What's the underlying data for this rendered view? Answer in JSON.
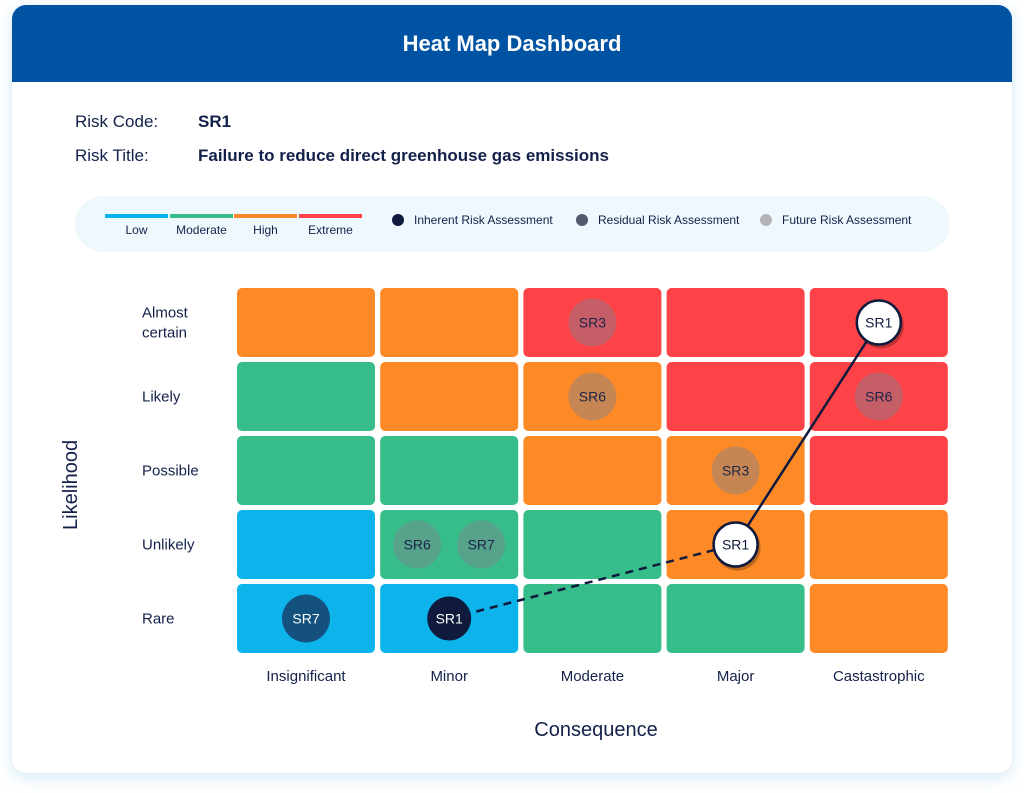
{
  "title": "Heat Map Dashboard",
  "risk": {
    "code_label": "Risk Code:",
    "code": "SR1",
    "title_label": "Risk Title:",
    "title": "Failure to reduce direct greenhouse gas emissions"
  },
  "legend": {
    "levels": [
      {
        "name": "Low",
        "color": "#0db4ec"
      },
      {
        "name": "Moderate",
        "color": "#36bd8a"
      },
      {
        "name": "High",
        "color": "#fd8a26"
      },
      {
        "name": "Extreme",
        "color": "#fd4347"
      }
    ],
    "assessments": [
      {
        "name": "Inherent Risk Assessment",
        "color": "#0f1a3d"
      },
      {
        "name": "Residual Risk Assessment",
        "color": "#545a6e"
      },
      {
        "name": "Future Risk Assessment",
        "color": "#b3b3b8"
      }
    ]
  },
  "chart_data": {
    "type": "heatmap",
    "xlabel": "Consequence",
    "ylabel": "Likelihood",
    "x_categories": [
      "Insignificant",
      "Minor",
      "Moderate",
      "Major",
      "Castastrophic"
    ],
    "y_categories": [
      "Almost certain",
      "Likely",
      "Possible",
      "Unlikely",
      "Rare"
    ],
    "cells": [
      [
        "High",
        "High",
        "Extreme",
        "Extreme",
        "Extreme"
      ],
      [
        "Moderate",
        "High",
        "High",
        "Extreme",
        "Extreme"
      ],
      [
        "Moderate",
        "Moderate",
        "High",
        "High",
        "Extreme"
      ],
      [
        "Low",
        "Moderate",
        "Moderate",
        "High",
        "High"
      ],
      [
        "Low",
        "Low",
        "Moderate",
        "Moderate",
        "High"
      ]
    ],
    "markers": [
      {
        "label": "SR3",
        "x": "Moderate",
        "y": "Almost certain",
        "style": "faded"
      },
      {
        "label": "SR6",
        "x": "Moderate",
        "y": "Likely",
        "style": "faded"
      },
      {
        "label": "SR6",
        "x": "Castastrophic",
        "y": "Likely",
        "style": "faded"
      },
      {
        "label": "SR3",
        "x": "Major",
        "y": "Possible",
        "style": "faded"
      },
      {
        "label": "SR6",
        "x": "Minor",
        "y": "Unlikely",
        "style": "faded",
        "offset": "left"
      },
      {
        "label": "SR7",
        "x": "Minor",
        "y": "Unlikely",
        "style": "faded",
        "offset": "right"
      },
      {
        "label": "SR7",
        "x": "Insignificant",
        "y": "Rare",
        "style": "dark-teal"
      },
      {
        "label": "SR1",
        "x": "Minor",
        "y": "Rare",
        "style": "inherent"
      },
      {
        "label": "SR1",
        "x": "Major",
        "y": "Unlikely",
        "style": "selected"
      },
      {
        "label": "SR1",
        "x": "Castastrophic",
        "y": "Almost certain",
        "style": "selected"
      }
    ],
    "path": [
      {
        "from": [
          "Minor",
          "Rare"
        ],
        "to": [
          "Major",
          "Unlikely"
        ],
        "dashed": true
      },
      {
        "from": [
          "Major",
          "Unlikely"
        ],
        "to": [
          "Castastrophic",
          "Almost certain"
        ],
        "dashed": false
      }
    ]
  }
}
